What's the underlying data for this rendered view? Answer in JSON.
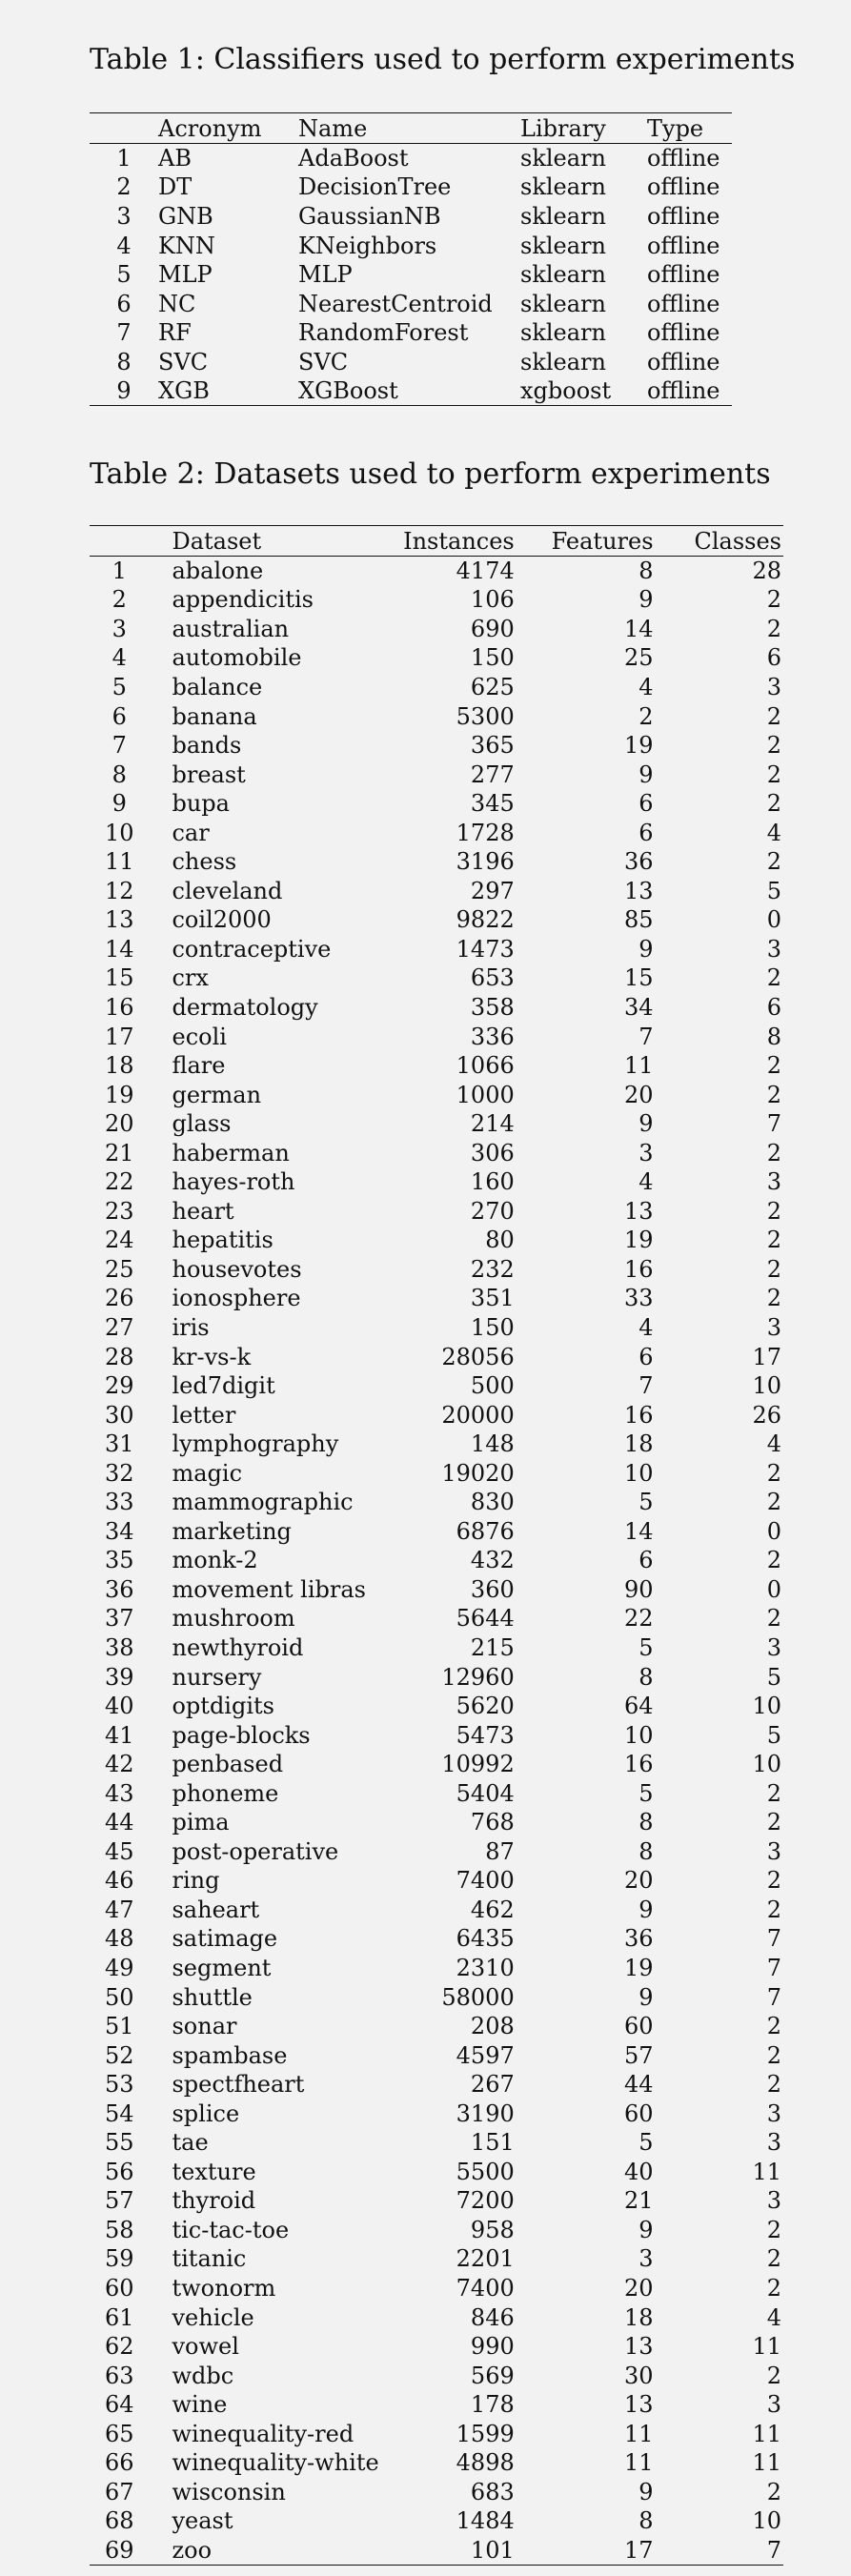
{
  "table1": {
    "caption": "Table 1: Classifiers used to perform experiments",
    "headers": [
      "",
      "Acronym",
      "Name",
      "Library",
      "Type"
    ],
    "rows": [
      [
        "1",
        "AB",
        "AdaBoost",
        "sklearn",
        "offline"
      ],
      [
        "2",
        "DT",
        "DecisionTree",
        "sklearn",
        "offline"
      ],
      [
        "3",
        "GNB",
        "GaussianNB",
        "sklearn",
        "offline"
      ],
      [
        "4",
        "KNN",
        "KNeighbors",
        "sklearn",
        "offline"
      ],
      [
        "5",
        "MLP",
        "MLP",
        "sklearn",
        "offline"
      ],
      [
        "6",
        "NC",
        "NearestCentroid",
        "sklearn",
        "offline"
      ],
      [
        "7",
        "RF",
        "RandomForest",
        "sklearn",
        "offline"
      ],
      [
        "8",
        "SVC",
        "SVC",
        "sklearn",
        "offline"
      ],
      [
        "9",
        "XGB",
        "XGBoost",
        "xgboost",
        "offline"
      ]
    ]
  },
  "table2": {
    "caption": "Table 2: Datasets used to perform experiments",
    "headers": [
      "",
      "Dataset",
      "Instances",
      "Features",
      "Classes"
    ],
    "rows": [
      [
        "1",
        "abalone",
        "4174",
        "8",
        "28"
      ],
      [
        "2",
        "appendicitis",
        "106",
        "9",
        "2"
      ],
      [
        "3",
        "australian",
        "690",
        "14",
        "2"
      ],
      [
        "4",
        "automobile",
        "150",
        "25",
        "6"
      ],
      [
        "5",
        "balance",
        "625",
        "4",
        "3"
      ],
      [
        "6",
        "banana",
        "5300",
        "2",
        "2"
      ],
      [
        "7",
        "bands",
        "365",
        "19",
        "2"
      ],
      [
        "8",
        "breast",
        "277",
        "9",
        "2"
      ],
      [
        "9",
        "bupa",
        "345",
        "6",
        "2"
      ],
      [
        "10",
        "car",
        "1728",
        "6",
        "4"
      ],
      [
        "11",
        "chess",
        "3196",
        "36",
        "2"
      ],
      [
        "12",
        "cleveland",
        "297",
        "13",
        "5"
      ],
      [
        "13",
        "coil2000",
        "9822",
        "85",
        "0"
      ],
      [
        "14",
        "contraceptive",
        "1473",
        "9",
        "3"
      ],
      [
        "15",
        "crx",
        "653",
        "15",
        "2"
      ],
      [
        "16",
        "dermatology",
        "358",
        "34",
        "6"
      ],
      [
        "17",
        "ecoli",
        "336",
        "7",
        "8"
      ],
      [
        "18",
        "flare",
        "1066",
        "11",
        "2"
      ],
      [
        "19",
        "german",
        "1000",
        "20",
        "2"
      ],
      [
        "20",
        "glass",
        "214",
        "9",
        "7"
      ],
      [
        "21",
        "haberman",
        "306",
        "3",
        "2"
      ],
      [
        "22",
        "hayes-roth",
        "160",
        "4",
        "3"
      ],
      [
        "23",
        "heart",
        "270",
        "13",
        "2"
      ],
      [
        "24",
        "hepatitis",
        "80",
        "19",
        "2"
      ],
      [
        "25",
        "housevotes",
        "232",
        "16",
        "2"
      ],
      [
        "26",
        "ionosphere",
        "351",
        "33",
        "2"
      ],
      [
        "27",
        "iris",
        "150",
        "4",
        "3"
      ],
      [
        "28",
        "kr-vs-k",
        "28056",
        "6",
        "17"
      ],
      [
        "29",
        "led7digit",
        "500",
        "7",
        "10"
      ],
      [
        "30",
        "letter",
        "20000",
        "16",
        "26"
      ],
      [
        "31",
        "lymphography",
        "148",
        "18",
        "4"
      ],
      [
        "32",
        "magic",
        "19020",
        "10",
        "2"
      ],
      [
        "33",
        "mammographic",
        "830",
        "5",
        "2"
      ],
      [
        "34",
        "marketing",
        "6876",
        "14",
        "0"
      ],
      [
        "35",
        "monk-2",
        "432",
        "6",
        "2"
      ],
      [
        "36",
        "movement libras",
        "360",
        "90",
        "0"
      ],
      [
        "37",
        "mushroom",
        "5644",
        "22",
        "2"
      ],
      [
        "38",
        "newthyroid",
        "215",
        "5",
        "3"
      ],
      [
        "39",
        "nursery",
        "12960",
        "8",
        "5"
      ],
      [
        "40",
        "optdigits",
        "5620",
        "64",
        "10"
      ],
      [
        "41",
        "page-blocks",
        "5473",
        "10",
        "5"
      ],
      [
        "42",
        "penbased",
        "10992",
        "16",
        "10"
      ],
      [
        "43",
        "phoneme",
        "5404",
        "5",
        "2"
      ],
      [
        "44",
        "pima",
        "768",
        "8",
        "2"
      ],
      [
        "45",
        "post-operative",
        "87",
        "8",
        "3"
      ],
      [
        "46",
        "ring",
        "7400",
        "20",
        "2"
      ],
      [
        "47",
        "saheart",
        "462",
        "9",
        "2"
      ],
      [
        "48",
        "satimage",
        "6435",
        "36",
        "7"
      ],
      [
        "49",
        "segment",
        "2310",
        "19",
        "7"
      ],
      [
        "50",
        "shuttle",
        "58000",
        "9",
        "7"
      ],
      [
        "51",
        "sonar",
        "208",
        "60",
        "2"
      ],
      [
        "52",
        "spambase",
        "4597",
        "57",
        "2"
      ],
      [
        "53",
        "spectfheart",
        "267",
        "44",
        "2"
      ],
      [
        "54",
        "splice",
        "3190",
        "60",
        "3"
      ],
      [
        "55",
        "tae",
        "151",
        "5",
        "3"
      ],
      [
        "56",
        "texture",
        "5500",
        "40",
        "11"
      ],
      [
        "57",
        "thyroid",
        "7200",
        "21",
        "3"
      ],
      [
        "58",
        "tic-tac-toe",
        "958",
        "9",
        "2"
      ],
      [
        "59",
        "titanic",
        "2201",
        "3",
        "2"
      ],
      [
        "60",
        "twonorm",
        "7400",
        "20",
        "2"
      ],
      [
        "61",
        "vehicle",
        "846",
        "18",
        "4"
      ],
      [
        "62",
        "vowel",
        "990",
        "13",
        "11"
      ],
      [
        "63",
        "wdbc",
        "569",
        "30",
        "2"
      ],
      [
        "64",
        "wine",
        "178",
        "13",
        "3"
      ],
      [
        "65",
        "winequality-red",
        "1599",
        "11",
        "11"
      ],
      [
        "66",
        "winequality-white",
        "4898",
        "11",
        "11"
      ],
      [
        "67",
        "wisconsin",
        "683",
        "9",
        "2"
      ],
      [
        "68",
        "yeast",
        "1484",
        "8",
        "10"
      ],
      [
        "69",
        "zoo",
        "101",
        "17",
        "7"
      ]
    ]
  }
}
